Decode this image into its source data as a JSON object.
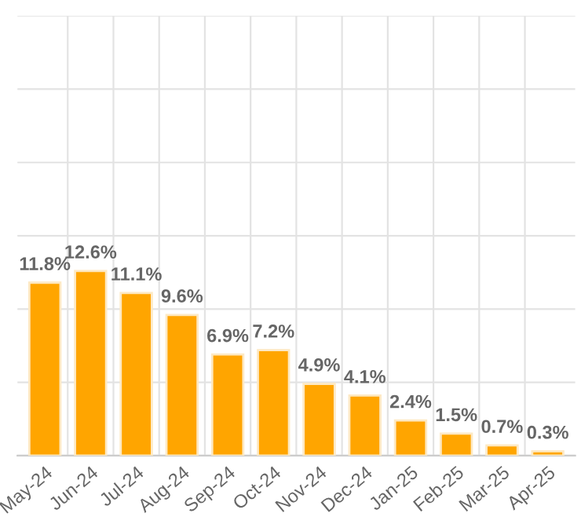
{
  "chart_data": {
    "type": "bar",
    "categories": [
      "May-24",
      "Jun-24",
      "Jul-24",
      "Aug-24",
      "Sep-24",
      "Oct-24",
      "Nov-24",
      "Dec-24",
      "Jan-25",
      "Feb-25",
      "Mar-25",
      "Apr-25"
    ],
    "values": [
      11.8,
      12.6,
      11.1,
      9.6,
      6.9,
      7.2,
      4.9,
      4.1,
      2.4,
      1.5,
      0.7,
      0.3
    ],
    "color": "#ffa500",
    "value_labels": [
      "11.8%",
      "12.6%",
      "11.1%",
      "9.6%",
      "6.9%",
      "7.2%",
      "4.9%",
      "4.1%",
      "2.4%",
      "1.5%",
      "0.7%",
      "0.3%"
    ],
    "ylim": [
      0,
      30
    ],
    "yticks": [
      {
        "value": 0,
        "label": null
      },
      {
        "value": 5,
        "label": null
      },
      {
        "value": 10,
        "label": null
      },
      {
        "value": 15,
        "label": null
      },
      {
        "value": 20,
        "label": null
      },
      {
        "value": 25,
        "label": null
      },
      {
        "value": 30,
        "label": null
      }
    ],
    "tick_labels": "x",
    "grid": true
  }
}
